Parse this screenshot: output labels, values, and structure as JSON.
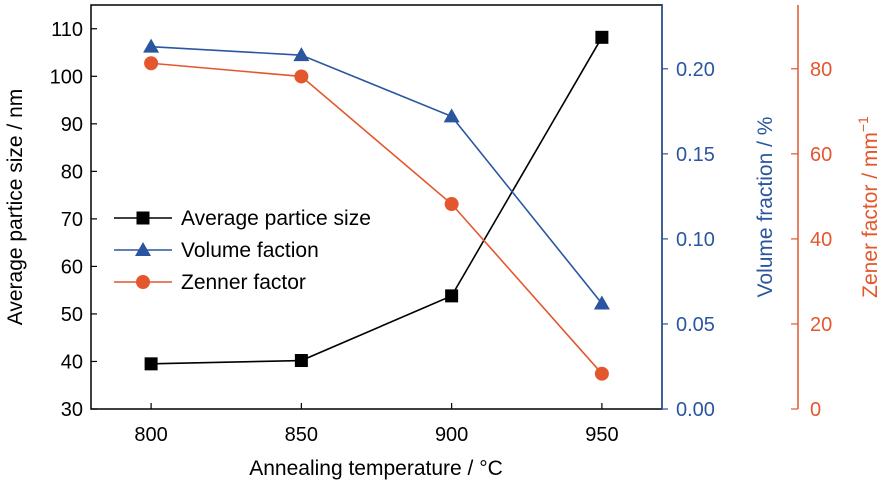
{
  "chart_data": {
    "type": "line",
    "title": "",
    "xlabel": "Annealing temperature / °C",
    "x": [
      800,
      850,
      900,
      950
    ],
    "xlim": [
      780,
      970
    ],
    "x_ticks": [
      "800",
      "850",
      "900",
      "950"
    ],
    "axes": {
      "left": {
        "label": "Average partice size / nm",
        "range": [
          30,
          115
        ],
        "ticks": [
          "30",
          "40",
          "50",
          "60",
          "70",
          "80",
          "90",
          "100",
          "110"
        ],
        "color": "#000000"
      },
      "right1": {
        "label": "Volume fraction / %",
        "range": [
          0.0,
          0.2375
        ],
        "ticks": [
          "0.00",
          "0.05",
          "0.10",
          "0.15",
          "0.20"
        ],
        "color": "#2a56a0"
      },
      "right2": {
        "label_main": "Zener factor / mm",
        "label_exp": "−1",
        "range": [
          0,
          95
        ],
        "ticks": [
          "0",
          "20",
          "40",
          "60",
          "80"
        ],
        "color": "#e4572e"
      }
    },
    "series": [
      {
        "name": "Average partice size",
        "axis": "left",
        "marker": "square",
        "color": "#000000",
        "values": [
          39.5,
          40.2,
          53.8,
          108.2
        ]
      },
      {
        "name": "Volume faction",
        "axis": "right1",
        "marker": "triangle",
        "color": "#2a56a0",
        "values": [
          0.213,
          0.208,
          0.172,
          0.062
        ]
      },
      {
        "name": "Zenner factor",
        "axis": "right2",
        "marker": "circle",
        "color": "#e4572e",
        "values": [
          81.3,
          78.2,
          48.2,
          8.3
        ]
      }
    ],
    "legend": {
      "position": "center-left"
    },
    "grid": false
  }
}
